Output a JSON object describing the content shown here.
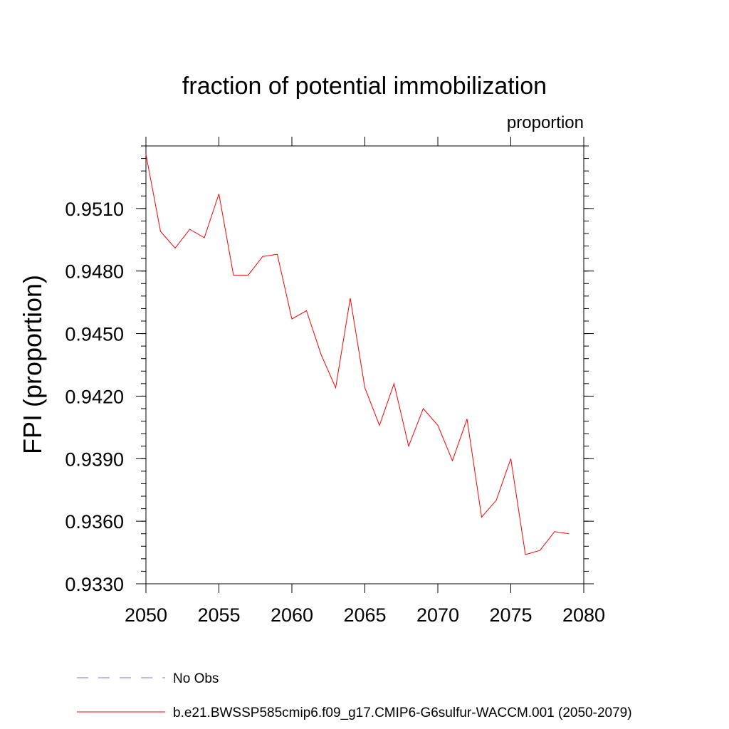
{
  "chart_data": {
    "type": "line",
    "title": "fraction of potential immobilization",
    "units_label": "proportion",
    "ylabel": "FPI  (proportion)",
    "xlabel": "",
    "xlim": [
      2050,
      2080
    ],
    "ylim": [
      0.933,
      0.954
    ],
    "x_ticks": [
      2050,
      2055,
      2060,
      2065,
      2070,
      2075,
      2080
    ],
    "x_tick_labels": [
      "2050",
      "2055",
      "2060",
      "2065",
      "2070",
      "2075",
      "2080"
    ],
    "y_ticks": [
      0.933,
      0.936,
      0.939,
      0.942,
      0.945,
      0.948,
      0.951
    ],
    "y_tick_labels": [
      "0.9330",
      "0.9360",
      "0.9390",
      "0.9420",
      "0.9450",
      "0.9480",
      "0.9510"
    ],
    "grid": false,
    "legend_position": "bottom",
    "series": [
      {
        "name": "b.e21.BWSSP585cmip6.f09_g17.CMIP6-G6sulfur-WACCM.001 (2050-2079)",
        "color": "#ff0000",
        "style": "solid",
        "x": [
          2050,
          2051,
          2052,
          2053,
          2054,
          2055,
          2056,
          2057,
          2058,
          2059,
          2060,
          2061,
          2062,
          2063,
          2064,
          2065,
          2066,
          2067,
          2068,
          2069,
          2070,
          2071,
          2072,
          2073,
          2074,
          2075,
          2076,
          2077,
          2078,
          2079
        ],
        "y": [
          0.9536,
          0.9499,
          0.9491,
          0.95,
          0.9496,
          0.9517,
          0.9478,
          0.9478,
          0.9487,
          0.9488,
          0.9457,
          0.9461,
          0.944,
          0.9424,
          0.9467,
          0.9424,
          0.9406,
          0.9426,
          0.9396,
          0.9414,
          0.9406,
          0.9389,
          0.9409,
          0.9362,
          0.937,
          0.939,
          0.9344,
          0.9346,
          0.9355,
          0.9354
        ]
      },
      {
        "name": "No Obs",
        "color": "#7b7bd6",
        "style": "dashed",
        "x": [],
        "y": []
      }
    ]
  }
}
